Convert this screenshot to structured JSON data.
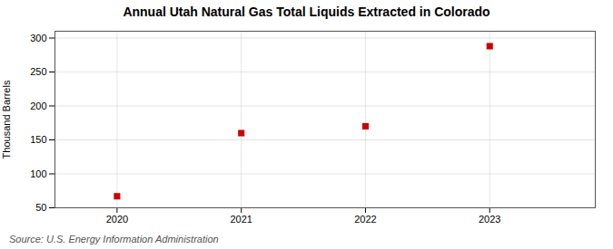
{
  "chart_data": {
    "type": "scatter",
    "title": "Annual Utah Natural Gas Total Liquids Extracted in Colorado",
    "ylabel": "Thousand Barrels",
    "source": "Source: U.S. Energy Information Administration",
    "x": [
      2020,
      2021,
      2022,
      2023
    ],
    "values": [
      67,
      160,
      170,
      288
    ],
    "color": "#cc0000",
    "marker": "square",
    "xlim": [
      2019.5,
      2023.85
    ],
    "ylim": [
      50,
      310
    ],
    "xticks": [
      2020,
      2021,
      2022,
      2023
    ],
    "yticks": [
      50,
      100,
      150,
      200,
      250,
      300
    ],
    "grid": true
  }
}
